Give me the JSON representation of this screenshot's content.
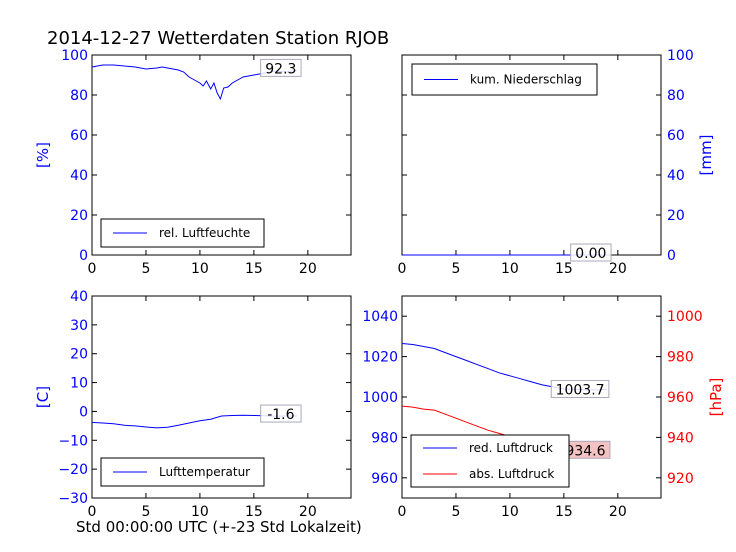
{
  "title": "2014-12-27 Wetterdaten Station RJOB",
  "xlabel": "Std 00:00:00 UTC (+-23 Std Lokalzeit)",
  "colors": {
    "blue": "#0000ff",
    "red": "#ff0000",
    "pressure_box": "#f4c2c2"
  },
  "chart_data": [
    {
      "type": "line",
      "panel": "top-left",
      "xlim": [
        0,
        24
      ],
      "ylim": [
        0,
        100
      ],
      "xticks": [
        0,
        5,
        10,
        15,
        20
      ],
      "yticks": [
        0,
        20,
        40,
        60,
        80,
        100
      ],
      "ylabel": "[%]",
      "legend_position": "bottom-left",
      "annotation": "92.3",
      "series": [
        {
          "name": "rel. Luftfeuchte",
          "color": "#0000ff",
          "x": [
            0,
            0.5,
            1,
            2,
            3,
            4,
            5,
            6,
            6.5,
            7,
            8,
            8.5,
            9,
            9.5,
            10,
            10.3,
            10.6,
            11,
            11.3,
            11.6,
            11.9,
            12.2,
            12.6,
            13,
            13.5,
            14,
            15,
            16,
            17,
            18,
            19
          ],
          "values": [
            94,
            94.5,
            95,
            95,
            94.5,
            94,
            93,
            93.5,
            94,
            93.5,
            92.5,
            91.5,
            89,
            87.5,
            86,
            84.5,
            87,
            83,
            86,
            81,
            78,
            83.5,
            84,
            86,
            87.5,
            89,
            90,
            91,
            92,
            91.5,
            92.3
          ]
        }
      ]
    },
    {
      "type": "line",
      "panel": "top-right",
      "xlim": [
        0,
        24
      ],
      "ylim": [
        0,
        100
      ],
      "xticks": [
        0,
        5,
        10,
        15,
        20
      ],
      "yticks": [
        0,
        20,
        40,
        60,
        80,
        100
      ],
      "ylabel": "[mm]",
      "legend_position": "top-left",
      "annotation": "0.00",
      "series": [
        {
          "name": "kum. Niederschlag",
          "color": "#0000ff",
          "x": [
            0,
            19
          ],
          "values": [
            0,
            0
          ]
        }
      ]
    },
    {
      "type": "line",
      "panel": "bottom-left",
      "xlim": [
        0,
        24
      ],
      "ylim": [
        -30,
        40
      ],
      "xticks": [
        0,
        5,
        10,
        15,
        20
      ],
      "yticks": [
        -30,
        -20,
        -10,
        0,
        10,
        20,
        30,
        40
      ],
      "ytick_labels": [
        "−30",
        "−20",
        "−10",
        "0",
        "10",
        "20",
        "30",
        "40"
      ],
      "ylabel": "[C]",
      "legend_position": "bottom-left",
      "annotation": "-1.6",
      "series": [
        {
          "name": "Lufttemperatur",
          "color": "#0000ff",
          "x": [
            0,
            1,
            2,
            3,
            4,
            5,
            6,
            7,
            8,
            9,
            10,
            11,
            12,
            13,
            14,
            15,
            16,
            17,
            18,
            19
          ],
          "values": [
            -3.8,
            -4,
            -4.3,
            -4.8,
            -5,
            -5.4,
            -5.7,
            -5.5,
            -4.8,
            -4,
            -3.2,
            -2.7,
            -1.6,
            -1.4,
            -1.3,
            -1.4,
            -1.5,
            -1.7,
            -1.6,
            -1.6
          ]
        }
      ]
    },
    {
      "type": "line",
      "panel": "bottom-right",
      "xlim": [
        0,
        24
      ],
      "ylim": [
        950,
        1050
      ],
      "yticks": [
        960,
        980,
        1000,
        1020,
        1040
      ],
      "ylim_right": [
        910,
        1010
      ],
      "yticks_right": [
        920,
        940,
        960,
        980,
        1000
      ],
      "xticks": [
        0,
        5,
        10,
        15,
        20
      ],
      "ylabel_right": "[hPa]",
      "legend_position": "bottom-left",
      "annotation_red": "1003.7",
      "annotation_abs": "934.6",
      "series": [
        {
          "name": "red. Luftdruck",
          "color": "#0000ff",
          "axis": "left",
          "x": [
            0,
            1,
            2,
            3,
            4,
            5,
            6,
            7,
            8,
            9,
            10,
            11,
            12,
            13,
            14,
            15,
            16,
            17,
            18,
            19
          ],
          "values": [
            1026.5,
            1026,
            1025,
            1024,
            1022,
            1020,
            1018,
            1016,
            1014,
            1012,
            1010.5,
            1009,
            1007.5,
            1006,
            1005,
            1004,
            1003.8,
            1003.6,
            1003.5,
            1003.7
          ]
        },
        {
          "name": "abs. Luftdruck",
          "color": "#ff0000",
          "axis": "right",
          "x": [
            0,
            1,
            2,
            3,
            4,
            5,
            6,
            7,
            8,
            9,
            10,
            11,
            12,
            13,
            14,
            15,
            16,
            17,
            18,
            19
          ],
          "values": [
            955.5,
            955,
            954,
            953.5,
            951.5,
            949.5,
            947.5,
            945.5,
            943.5,
            942,
            940.5,
            939.5,
            938.5,
            937.5,
            936,
            935,
            934.6,
            934.6,
            934.5,
            934.6
          ]
        }
      ]
    }
  ]
}
